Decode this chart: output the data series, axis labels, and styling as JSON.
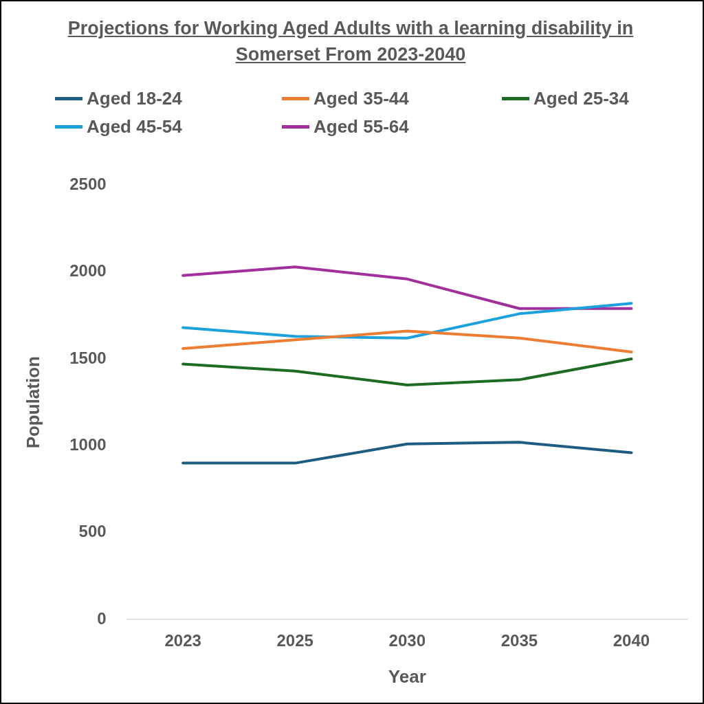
{
  "chart_data": {
    "type": "line",
    "title": "Projections for Working Aged Adults with a learning disability in Somerset From 2023-2040",
    "xlabel": "Year",
    "ylabel": "Population",
    "categories": [
      "2023",
      "2025",
      "2030",
      "2035",
      "2040"
    ],
    "series": [
      {
        "name": "Aged 18-24",
        "color": "#1f5c82",
        "values": [
          900,
          900,
          1010,
          1020,
          960
        ]
      },
      {
        "name": "Aged 35-44",
        "color": "#ed7d31",
        "values": [
          1560,
          1610,
          1660,
          1620,
          1540
        ]
      },
      {
        "name": "Aged 25-34",
        "color": "#1e6b24",
        "values": [
          1470,
          1430,
          1350,
          1380,
          1500
        ]
      },
      {
        "name": "Aged 45-54",
        "color": "#1ba1db",
        "values": [
          1680,
          1630,
          1620,
          1760,
          1820
        ]
      },
      {
        "name": "Aged 55-64",
        "color": "#a1309b",
        "values": [
          1980,
          2030,
          1960,
          1790,
          1790
        ]
      }
    ],
    "ylim": [
      0,
      2500
    ],
    "yticks": [
      0,
      500,
      1000,
      1500,
      2000,
      2500
    ],
    "grid": false,
    "legend": "top",
    "marker": "none",
    "line_style": "solid"
  }
}
